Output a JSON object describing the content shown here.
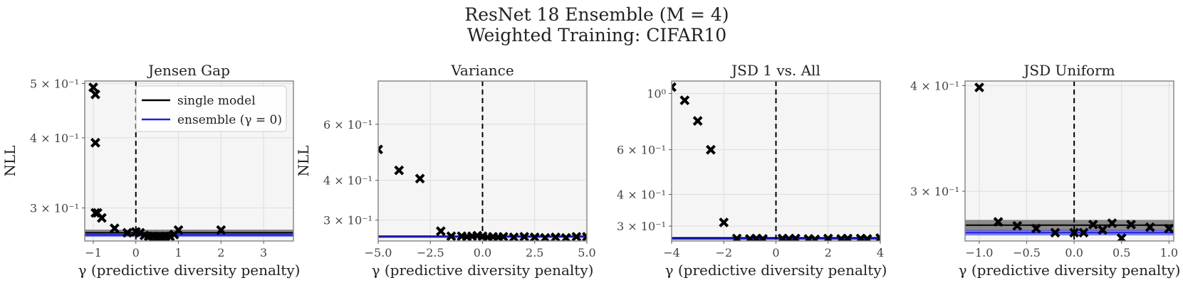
{
  "figure": {
    "title_line1": "ResNet 18 Ensemble (M = 4)",
    "title_line2": "Weighted Training: CIFAR10",
    "colors": {
      "single": "#000000",
      "ensemble": "#1f1fe0",
      "band": "#777777",
      "panel_bg": "#f5f5f5",
      "grid": "#dddddd"
    }
  },
  "legend": {
    "single_label": "single model",
    "ensemble_label": "ensemble (γ = 0)"
  },
  "chart_data": [
    {
      "type": "scatter",
      "title": "Jensen Gap",
      "xlabel": "γ (predictive diversity penalty)",
      "ylabel": "NLL",
      "yscale": "log",
      "xlim": [
        -1.2,
        3.7
      ],
      "ylim": [
        0.262,
        0.505
      ],
      "xticks": [
        -1,
        0,
        1,
        2,
        3
      ],
      "xtick_labels": [
        "−1",
        "0",
        "1",
        "2",
        "3"
      ],
      "yticks": [
        0.3,
        0.4,
        0.5
      ],
      "ytick_labels": [
        "3 × 10⁻¹",
        "4 × 10⁻¹",
        "5 × 10⁻¹"
      ],
      "single_model": {
        "center": 0.271,
        "low": 0.2675,
        "high": 0.2745
      },
      "ensemble": {
        "center": 0.2685,
        "low": 0.2665,
        "high": 0.2705
      },
      "x": [
        -1.0,
        -0.95,
        -0.95,
        -0.95,
        -0.9,
        -0.8,
        -0.5,
        -0.2,
        0.0,
        0.1,
        0.2,
        0.3,
        0.4,
        0.5,
        0.6,
        0.7,
        0.8,
        0.9,
        1.0,
        2.0
      ],
      "y": [
        0.492,
        0.478,
        0.392,
        0.294,
        0.294,
        0.288,
        0.276,
        0.271,
        0.272,
        0.271,
        0.268,
        0.267,
        0.267,
        0.266,
        0.266,
        0.267,
        0.267,
        0.269,
        0.274,
        0.274
      ]
    },
    {
      "type": "scatter",
      "title": "Variance",
      "xlabel": "γ (predictive diversity penalty)",
      "ylabel": "NLL",
      "yscale": "log",
      "xlim": [
        -5.0,
        5.0
      ],
      "ylim": [
        0.258,
        0.82
      ],
      "xticks": [
        -5,
        -2.5,
        0,
        2.5,
        5
      ],
      "xtick_labels": [
        "−5.0",
        "−2.5",
        "0.0",
        "2.5",
        "5.0"
      ],
      "yticks": [
        0.3,
        0.4,
        0.6
      ],
      "ytick_labels": [
        "3 × 10⁻¹",
        "4 × 10⁻¹",
        "6 × 10⁻¹"
      ],
      "single_model": {
        "center": 0.267,
        "low": 0.2655,
        "high": 0.2685
      },
      "ensemble": {
        "center": 0.2655,
        "low": 0.264,
        "high": 0.267
      },
      "x": [
        -5.0,
        -4.0,
        -3.0,
        -2.0,
        -1.5,
        -1.0,
        -0.75,
        -0.5,
        -0.25,
        0.0,
        0.25,
        0.5,
        0.75,
        1.0,
        1.5,
        2.0,
        2.5,
        3.0,
        3.5,
        4.0,
        4.5,
        5.0
      ],
      "y": [
        0.5,
        0.43,
        0.405,
        0.277,
        0.267,
        0.267,
        0.266,
        0.267,
        0.268,
        0.267,
        0.265,
        0.266,
        0.265,
        0.266,
        0.265,
        0.266,
        0.265,
        0.264,
        0.265,
        0.264,
        0.266,
        0.266
      ]
    },
    {
      "type": "scatter",
      "title": "JSD 1 vs. All",
      "xlabel": "γ (predictive diversity penalty)",
      "ylabel": "",
      "yscale": "log",
      "xlim": [
        -4.0,
        4.0
      ],
      "ylim": [
        0.262,
        1.12
      ],
      "xticks": [
        -4,
        -2,
        0,
        2,
        4
      ],
      "xtick_labels": [
        "−4",
        "−2",
        "0",
        "2",
        "4"
      ],
      "yticks": [
        0.3,
        0.4,
        0.6,
        1.0
      ],
      "ytick_labels": [
        "3 × 10⁻¹",
        "4 × 10⁻¹",
        "6 × 10⁻¹",
        "10⁰"
      ],
      "single_model": {
        "center": 0.2695,
        "low": 0.2675,
        "high": 0.2715
      },
      "ensemble": {
        "center": 0.267,
        "low": 0.2655,
        "high": 0.2685
      },
      "x": [
        -4.0,
        -3.5,
        -3.0,
        -2.5,
        -2.0,
        -1.5,
        -1.0,
        -0.75,
        -0.5,
        0.25,
        0.5,
        0.75,
        1.25,
        1.5,
        2.0,
        2.5,
        2.75,
        3.25,
        3.5,
        4.0
      ],
      "y": [
        1.06,
        0.94,
        0.78,
        0.6,
        0.31,
        0.268,
        0.267,
        0.268,
        0.267,
        0.268,
        0.267,
        0.268,
        0.267,
        0.266,
        0.268,
        0.267,
        0.268,
        0.268,
        0.267,
        0.269
      ]
    },
    {
      "type": "scatter",
      "title": "JSD Uniform",
      "xlabel": "γ (predictive diversity penalty)",
      "ylabel": "",
      "yscale": "log",
      "xlim": [
        -1.15,
        1.05
      ],
      "ylim": [
        0.262,
        0.405
      ],
      "xticks": [
        -1.0,
        -0.5,
        0.0,
        0.5,
        1.0
      ],
      "xtick_labels": [
        "−1.0",
        "−0.5",
        "0.0",
        "0.5",
        "1.0"
      ],
      "yticks": [
        0.3,
        0.4
      ],
      "ytick_labels": [
        "3 × 10⁻¹",
        "4 × 10⁻¹"
      ],
      "single_model": {
        "center": 0.2735,
        "low": 0.2695,
        "high": 0.2775
      },
      "ensemble": {
        "center": 0.268,
        "low": 0.266,
        "high": 0.27
      },
      "x": [
        -1.0,
        -0.8,
        -0.6,
        -0.4,
        -0.2,
        0.0,
        0.1,
        0.2,
        0.3,
        0.4,
        0.5,
        0.6,
        0.8,
        1.0
      ],
      "y": [
        0.398,
        0.276,
        0.273,
        0.271,
        0.268,
        0.268,
        0.268,
        0.274,
        0.27,
        0.275,
        0.264,
        0.274,
        0.272,
        0.271
      ]
    }
  ]
}
